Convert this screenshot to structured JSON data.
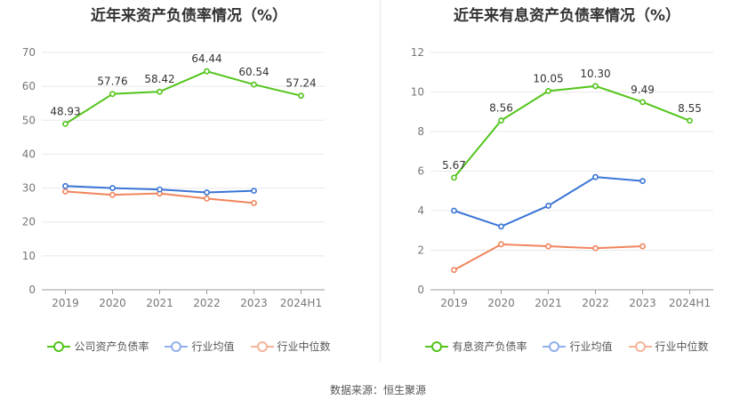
{
  "chart_data": [
    {
      "type": "line",
      "title": "近年来资产负债率情况（%）",
      "categories": [
        "2019",
        "2020",
        "2021",
        "2022",
        "2023",
        "2024H1"
      ],
      "ylim": [
        0,
        70
      ],
      "yticks": [
        0,
        10,
        20,
        30,
        40,
        50,
        60,
        70
      ],
      "grid": true,
      "legend_position": "bottom",
      "series": [
        {
          "name": "公司资产负债率",
          "color": "#52c41a",
          "values": [
            48.93,
            57.76,
            58.42,
            64.44,
            60.54,
            57.24
          ],
          "labels": [
            "48.93",
            "57.76",
            "58.42",
            "64.44",
            "60.54",
            "57.24"
          ]
        },
        {
          "name": "行业均值",
          "color": "#3a75d6",
          "values": [
            30.6,
            30.0,
            29.6,
            28.7,
            29.2,
            null
          ]
        },
        {
          "name": "行业中位数",
          "color": "#f0845c",
          "values": [
            29.0,
            28.0,
            28.4,
            26.9,
            25.6,
            null
          ]
        }
      ],
      "legend_colors": [
        "#52c41a",
        "#8fb0ec",
        "#f5b49a"
      ]
    },
    {
      "type": "line",
      "title": "近年来有息资产负债率情况（%）",
      "categories": [
        "2019",
        "2020",
        "2021",
        "2022",
        "2023",
        "2024H1"
      ],
      "ylim": [
        0,
        12
      ],
      "yticks": [
        0,
        2,
        4,
        6,
        8,
        10,
        12
      ],
      "grid": true,
      "legend_position": "bottom",
      "series": [
        {
          "name": "有息资产负债率",
          "color": "#52c41a",
          "values": [
            5.67,
            8.56,
            10.05,
            10.3,
            9.49,
            8.55
          ],
          "labels": [
            "5.67",
            "8.56",
            "10.05",
            "10.30",
            "9.49",
            "8.55"
          ]
        },
        {
          "name": "行业均值",
          "color": "#3a75d6",
          "values": [
            4.0,
            3.2,
            4.25,
            5.7,
            5.5,
            null
          ]
        },
        {
          "name": "行业中位数",
          "color": "#f0845c",
          "values": [
            1.0,
            2.3,
            2.2,
            2.1,
            2.2,
            null
          ]
        }
      ],
      "legend_colors": [
        "#52c41a",
        "#8fb0ec",
        "#f5b49a"
      ]
    }
  ],
  "source": "数据来源：恒生聚源"
}
